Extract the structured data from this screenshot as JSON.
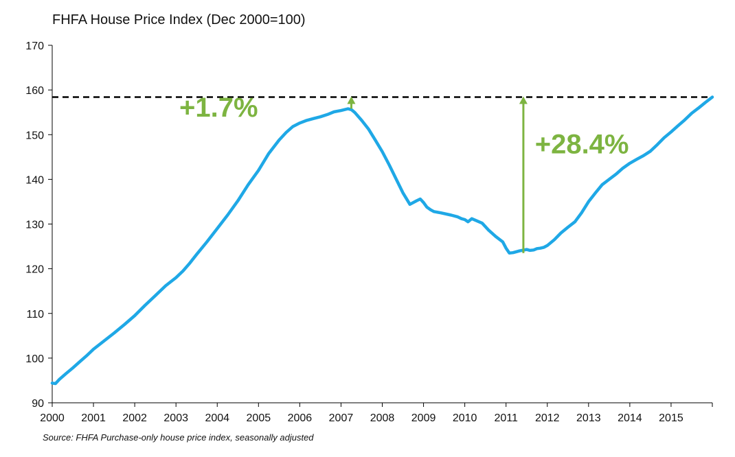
{
  "chart_data": {
    "type": "line",
    "title": "FHFA House Price Index (Dec 2000=100)",
    "source": "Source: FHFA Purchase-only house price index, seasonally adjusted",
    "xlabel": "",
    "ylabel": "",
    "xlim": [
      2000,
      2016
    ],
    "ylim": [
      90,
      170
    ],
    "y_ticks": [
      90,
      100,
      110,
      120,
      130,
      140,
      150,
      160,
      170
    ],
    "x_ticks": [
      2000,
      2001,
      2002,
      2003,
      2004,
      2005,
      2006,
      2007,
      2008,
      2009,
      2010,
      2011,
      2012,
      2013,
      2014,
      2015
    ],
    "grid": false,
    "line_color": "#1FA8E6",
    "annotation_color": "#7DB441",
    "reference_line": {
      "value": 158.4,
      "style": "dashed",
      "color": "#000000"
    },
    "annotations": [
      {
        "text": "+1.7%",
        "arrow_x": 2007.25,
        "arrow_from": 155.8,
        "arrow_to": 158.4
      },
      {
        "text": "+28.4%",
        "arrow_x": 2011.42,
        "arrow_from": 123.5,
        "arrow_to": 158.4
      }
    ],
    "series": [
      {
        "x": [
          2000.0,
          2000.08,
          2000.17,
          2000.33,
          2000.5,
          2000.67,
          2000.83,
          2001.0,
          2001.25,
          2001.5,
          2001.75,
          2002.0,
          2002.25,
          2002.5,
          2002.75,
          2003.0,
          2003.17,
          2003.33,
          2003.5,
          2003.75,
          2004.0,
          2004.25,
          2004.5,
          2004.75,
          2005.0,
          2005.25,
          2005.5,
          2005.67,
          2005.83,
          2006.0,
          2006.17,
          2006.33,
          2006.5,
          2006.67,
          2006.83,
          2007.0,
          2007.17,
          2007.25,
          2007.33,
          2007.5,
          2007.67,
          2007.83,
          2008.0,
          2008.17,
          2008.33,
          2008.5,
          2008.67,
          2008.83,
          2008.92,
          2009.0,
          2009.08,
          2009.17,
          2009.25,
          2009.42,
          2009.67,
          2009.83,
          2009.92,
          2010.0,
          2010.08,
          2010.17,
          2010.42,
          2010.58,
          2010.75,
          2010.92,
          2011.0,
          2011.08,
          2011.17,
          2011.33,
          2011.5,
          2011.58,
          2011.67,
          2011.75,
          2011.83,
          2011.92,
          2012.0,
          2012.17,
          2012.33,
          2012.5,
          2012.67,
          2012.83,
          2013.0,
          2013.17,
          2013.33,
          2013.5,
          2013.67,
          2013.83,
          2014.0,
          2014.17,
          2014.33,
          2014.5,
          2014.67,
          2014.83,
          2015.0,
          2015.17,
          2015.33,
          2015.5,
          2015.67,
          2015.83,
          2016.0
        ],
        "values": [
          94.4,
          94.3,
          95.2,
          96.5,
          97.8,
          99.2,
          100.5,
          102.0,
          103.8,
          105.6,
          107.5,
          109.5,
          111.8,
          114.0,
          116.2,
          118.0,
          119.5,
          121.2,
          123.2,
          126.0,
          129.0,
          132.0,
          135.2,
          138.8,
          142.0,
          145.8,
          148.8,
          150.5,
          151.8,
          152.6,
          153.2,
          153.6,
          154.0,
          154.5,
          155.1,
          155.4,
          155.8,
          155.6,
          155.0,
          153.2,
          151.2,
          148.8,
          146.2,
          143.2,
          140.2,
          137.0,
          134.4,
          135.2,
          135.6,
          134.8,
          133.8,
          133.2,
          132.8,
          132.5,
          132.0,
          131.6,
          131.2,
          131.0,
          130.5,
          131.2,
          130.2,
          128.6,
          127.2,
          126.0,
          124.6,
          123.5,
          123.6,
          124.0,
          124.3,
          124.1,
          124.2,
          124.5,
          124.6,
          124.8,
          125.2,
          126.5,
          128.0,
          129.3,
          130.5,
          132.5,
          135.0,
          137.0,
          138.8,
          140.0,
          141.2,
          142.5,
          143.6,
          144.5,
          145.3,
          146.3,
          147.8,
          149.3,
          150.6,
          152.0,
          153.3,
          154.8,
          156.0,
          157.2,
          158.4
        ]
      }
    ]
  }
}
